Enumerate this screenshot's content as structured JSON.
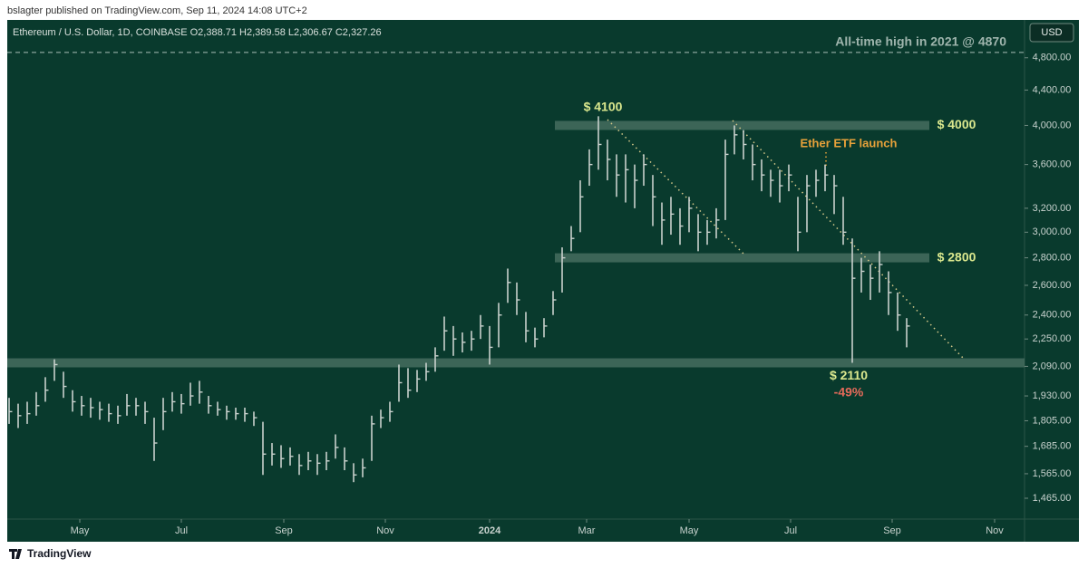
{
  "header": {
    "published": "bslagter published on TradingView.com, Sep 11, 2024 14:08 UTC+2"
  },
  "footer": {
    "brand": "TradingView"
  },
  "chart_data": {
    "type": "ohlc",
    "symbol": "Ethereum / U.S. Dollar, 1D, COINBASE  O2,388.71  H2,389.58  L2,306.67  C2,327.26",
    "currency": "USD",
    "log_scale": true,
    "color": "#c9d1cd",
    "close": [
      1850,
      1830,
      1840,
      1880,
      1960,
      2100,
      1980,
      1900,
      1880,
      1870,
      1860,
      1840,
      1830,
      1880,
      1880,
      1850,
      1700,
      1850,
      1900,
      1890,
      1930,
      1950,
      1880,
      1860,
      1850,
      1840,
      1840,
      1820,
      1650,
      1650,
      1630,
      1640,
      1600,
      1620,
      1610,
      1620,
      1680,
      1620,
      1560,
      1590,
      1790,
      1820,
      1850,
      2000,
      1960,
      2020,
      2060,
      2150,
      2300,
      2250,
      2230,
      2250,
      2330,
      2200,
      2400,
      2620,
      2500,
      2300,
      2250,
      2330,
      2500,
      2800,
      2950,
      3300,
      3600,
      3800,
      3650,
      3500,
      3550,
      3450,
      3600,
      3300,
      3100,
      3150,
      3050,
      3200,
      3000,
      3000,
      3100,
      3700,
      3900,
      3800,
      3600,
      3500,
      3450,
      3400,
      3500,
      3000,
      3400,
      3450,
      3500,
      3400,
      3000,
      2650,
      2700,
      2650,
      2750,
      2550,
      2400,
      2330
    ],
    "high": [
      1920,
      1890,
      1900,
      1950,
      2030,
      2130,
      2060,
      1960,
      1930,
      1920,
      1900,
      1890,
      1880,
      1940,
      1920,
      1900,
      1820,
      1920,
      1950,
      1940,
      2000,
      2010,
      1930,
      1900,
      1880,
      1870,
      1870,
      1850,
      1800,
      1700,
      1690,
      1680,
      1650,
      1660,
      1650,
      1660,
      1740,
      1680,
      1610,
      1630,
      1830,
      1860,
      1900,
      2100,
      2080,
      2070,
      2110,
      2200,
      2390,
      2330,
      2290,
      2300,
      2400,
      2330,
      2480,
      2720,
      2620,
      2420,
      2320,
      2380,
      2560,
      2880,
      3050,
      3450,
      3750,
      4100,
      3850,
      3700,
      3700,
      3600,
      3700,
      3500,
      3250,
      3300,
      3200,
      3300,
      3150,
      3100,
      3200,
      3850,
      4000,
      3950,
      3800,
      3650,
      3550,
      3550,
      3600,
      3300,
      3500,
      3550,
      3600,
      3500,
      3300,
      2950,
      2800,
      2750,
      2850,
      2700,
      2550,
      2380
    ],
    "low": [
      1790,
      1770,
      1790,
      1830,
      1900,
      2010,
      1920,
      1850,
      1830,
      1820,
      1810,
      1800,
      1790,
      1830,
      1830,
      1790,
      1620,
      1760,
      1850,
      1840,
      1880,
      1890,
      1840,
      1830,
      1810,
      1810,
      1800,
      1780,
      1560,
      1600,
      1590,
      1600,
      1560,
      1580,
      1560,
      1580,
      1630,
      1580,
      1530,
      1550,
      1620,
      1770,
      1800,
      1900,
      1920,
      1950,
      2010,
      2060,
      2180,
      2150,
      2170,
      2180,
      2250,
      2100,
      2200,
      2480,
      2400,
      2230,
      2200,
      2260,
      2400,
      2550,
      2850,
      3000,
      3400,
      3550,
      3450,
      3300,
      3250,
      3200,
      3400,
      3050,
      2900,
      2980,
      2900,
      3000,
      2850,
      2900,
      2950,
      3100,
      3700,
      3650,
      3450,
      3350,
      3300,
      3250,
      3350,
      2850,
      3000,
      3300,
      3350,
      3150,
      2900,
      2110,
      2550,
      2500,
      2550,
      2400,
      2300,
      2200
    ],
    "xlim": [
      -0.2,
      112
    ],
    "xticks": [
      {
        "value": 7.8,
        "label": "May"
      },
      {
        "value": 19,
        "label": "Jul"
      },
      {
        "value": 30.3,
        "label": "Sep"
      },
      {
        "value": 41.5,
        "label": "Nov"
      },
      {
        "value": 53,
        "label": "2024"
      },
      {
        "value": 63.7,
        "label": "Mar"
      },
      {
        "value": 75,
        "label": "May"
      },
      {
        "value": 86.2,
        "label": "Jul"
      },
      {
        "value": 97.4,
        "label": "Sep"
      },
      {
        "value": 108.7,
        "label": "Nov"
      }
    ],
    "ylim": [
      1385,
      5315
    ],
    "yticks": [
      {
        "value": 4800,
        "label": "4,800.00"
      },
      {
        "value": 4400,
        "label": "4,400.00"
      },
      {
        "value": 4000,
        "label": "4,000.00"
      },
      {
        "value": 3600,
        "label": "3,600.00"
      },
      {
        "value": 3200,
        "label": "3,200.00"
      },
      {
        "value": 3000,
        "label": "3,000.00"
      },
      {
        "value": 2800,
        "label": "2,800.00"
      },
      {
        "value": 2600,
        "label": "2,600.00"
      },
      {
        "value": 2400,
        "label": "2,400.00"
      },
      {
        "value": 2250,
        "label": "2,250.00"
      },
      {
        "value": 2090,
        "label": "2,090.00"
      },
      {
        "value": 1930,
        "label": "1,930.00"
      },
      {
        "value": 1805,
        "label": "1,805.00"
      },
      {
        "value": 1685,
        "label": "1,685.00"
      },
      {
        "value": 1565,
        "label": "1,565.00"
      },
      {
        "value": 1465,
        "label": "1,465.00"
      }
    ],
    "levels": [
      {
        "value": 4000,
        "label": "$ 4000"
      },
      {
        "value": 2800,
        "label": "$ 2800"
      },
      {
        "value": 2110,
        "label": "$ 2110"
      }
    ],
    "ath": {
      "value": 4870,
      "label": "All-time high in 2021 @ 4870"
    },
    "annotations": {
      "peak": "$ 4100",
      "etf": "Ether ETF launch",
      "drawdown": "-49%"
    }
  }
}
